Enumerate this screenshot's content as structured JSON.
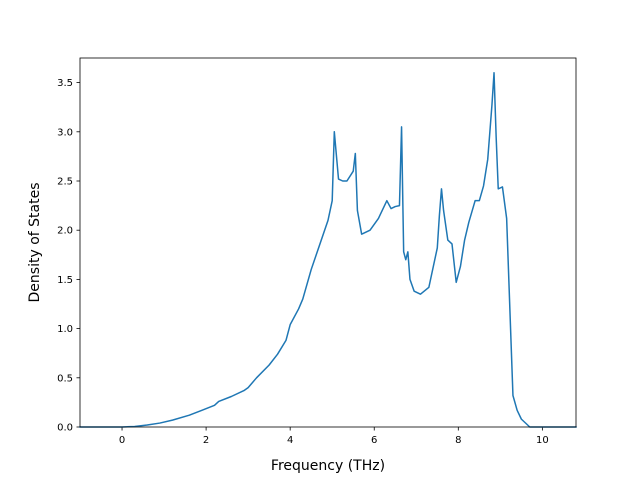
{
  "chart_data": {
    "type": "line",
    "title": "",
    "xlabel": "Frequency (THz)",
    "ylabel": "Density of States",
    "xlim": [
      -1.0,
      10.8
    ],
    "ylim": [
      0.0,
      3.75
    ],
    "x_ticks": [
      0,
      2,
      4,
      6,
      8,
      10
    ],
    "y_ticks": [
      0.0,
      0.5,
      1.0,
      1.5,
      2.0,
      2.5,
      3.0,
      3.5
    ],
    "grid": false,
    "legend": "none",
    "series": [
      {
        "color": "#1f77b4",
        "x": [
          -1.0,
          -0.4,
          0.0,
          0.3,
          0.6,
          0.9,
          1.2,
          1.6,
          1.9,
          2.2,
          2.3,
          2.6,
          2.9,
          3.0,
          3.2,
          3.5,
          3.7,
          3.9,
          4.0,
          4.2,
          4.3,
          4.5,
          4.7,
          4.9,
          5.0,
          5.05,
          5.15,
          5.25,
          5.35,
          5.5,
          5.55,
          5.6,
          5.7,
          5.9,
          6.1,
          6.3,
          6.4,
          6.5,
          6.6,
          6.65,
          6.7,
          6.75,
          6.8,
          6.85,
          6.95,
          7.1,
          7.3,
          7.5,
          7.55,
          7.6,
          7.65,
          7.75,
          7.85,
          7.95,
          8.05,
          8.15,
          8.25,
          8.4,
          8.5,
          8.6,
          8.7,
          8.8,
          8.85,
          8.9,
          8.95,
          9.05,
          9.15,
          9.3,
          9.4,
          9.5,
          9.7,
          9.8,
          10.0,
          10.8
        ],
        "y": [
          0.0,
          0.0,
          0.0,
          0.005,
          0.02,
          0.04,
          0.07,
          0.12,
          0.17,
          0.22,
          0.26,
          0.31,
          0.37,
          0.4,
          0.5,
          0.63,
          0.74,
          0.88,
          1.04,
          1.2,
          1.3,
          1.6,
          1.85,
          2.1,
          2.3,
          3.0,
          2.52,
          2.5,
          2.5,
          2.6,
          2.78,
          2.2,
          1.96,
          2.0,
          2.12,
          2.3,
          2.22,
          2.24,
          2.25,
          3.05,
          1.78,
          1.7,
          1.78,
          1.5,
          1.38,
          1.35,
          1.42,
          1.82,
          2.15,
          2.42,
          2.2,
          1.9,
          1.86,
          1.47,
          1.63,
          1.9,
          2.08,
          2.3,
          2.3,
          2.45,
          2.72,
          3.27,
          3.6,
          2.95,
          2.42,
          2.44,
          2.12,
          0.32,
          0.17,
          0.08,
          0.0,
          0.0,
          0.0,
          0.0
        ]
      }
    ]
  }
}
